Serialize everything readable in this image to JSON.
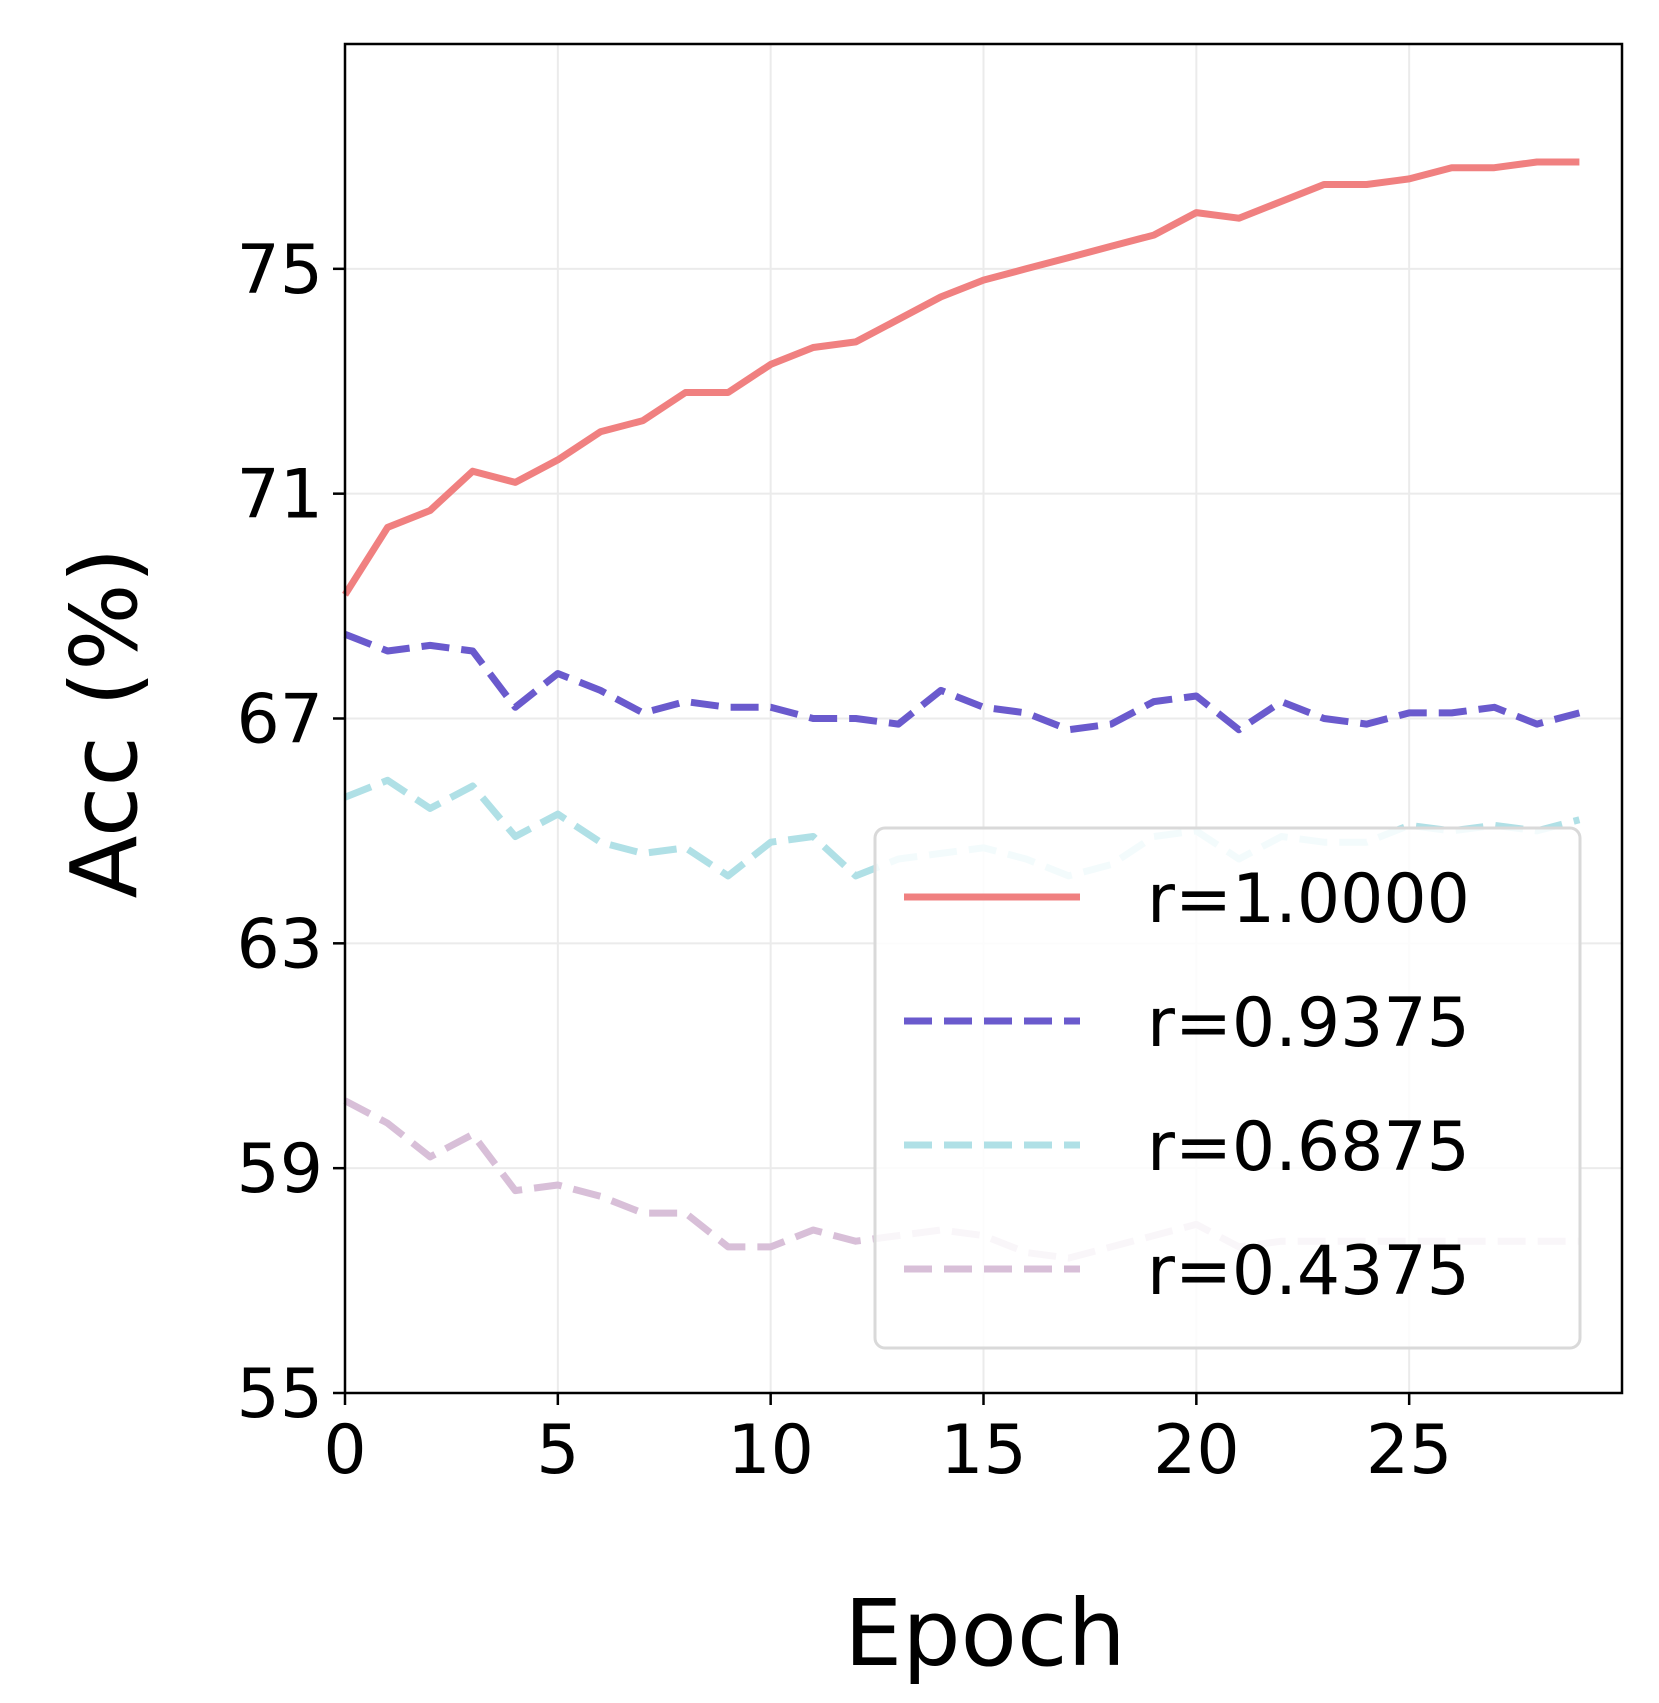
{
  "chart_data": {
    "type": "line",
    "title": "",
    "xlabel": "Epoch",
    "ylabel": "Acc (%)",
    "xlim": [
      0,
      30
    ],
    "ylim": [
      55,
      79
    ],
    "xticks": [
      0,
      5,
      10,
      15,
      20,
      25
    ],
    "yticks": [
      55,
      59,
      63,
      67,
      71,
      75
    ],
    "grid": true,
    "legend_position": "lower-right",
    "x": [
      0,
      1,
      2,
      3,
      4,
      5,
      6,
      7,
      8,
      9,
      10,
      11,
      12,
      13,
      14,
      15,
      16,
      17,
      18,
      19,
      20,
      21,
      22,
      23,
      24,
      25,
      26,
      27,
      28,
      29
    ],
    "series": [
      {
        "name": "r=1.0000",
        "color": "#f08080",
        "style": "solid",
        "values": [
          69.2,
          70.4,
          70.7,
          71.4,
          71.2,
          71.6,
          72.1,
          72.3,
          72.8,
          72.8,
          73.3,
          73.6,
          73.7,
          74.1,
          74.5,
          74.8,
          75.0,
          75.2,
          75.4,
          75.6,
          76.0,
          75.9,
          76.2,
          76.5,
          76.5,
          76.6,
          76.8,
          76.8,
          76.9,
          76.9
        ]
      },
      {
        "name": "r=0.9375",
        "color": "#6a5acd",
        "style": "dashed",
        "values": [
          68.5,
          68.2,
          68.3,
          68.2,
          67.2,
          67.8,
          67.5,
          67.1,
          67.3,
          67.2,
          67.2,
          67.0,
          67.0,
          66.9,
          67.5,
          67.2,
          67.1,
          66.8,
          66.9,
          67.3,
          67.4,
          66.8,
          67.3,
          67.0,
          66.9,
          67.1,
          67.1,
          67.2,
          66.9,
          67.1
        ]
      },
      {
        "name": "r=0.6875",
        "color": "#b0e0e6",
        "style": "dashed",
        "values": [
          65.6,
          65.9,
          65.4,
          65.8,
          64.9,
          65.3,
          64.8,
          64.6,
          64.7,
          64.2,
          64.8,
          64.9,
          64.2,
          64.5,
          64.6,
          64.7,
          64.5,
          64.2,
          64.4,
          64.9,
          65.0,
          64.5,
          64.9,
          64.8,
          64.8,
          65.1,
          65.0,
          65.1,
          65.0,
          65.2
        ]
      },
      {
        "name": "r=0.4375",
        "color": "#d8bfd8",
        "style": "dashed",
        "values": [
          60.2,
          59.8,
          59.2,
          59.6,
          58.6,
          58.7,
          58.5,
          58.2,
          58.2,
          57.6,
          57.6,
          57.9,
          57.7,
          57.8,
          57.9,
          57.8,
          57.5,
          57.4,
          57.6,
          57.8,
          58.0,
          57.6,
          57.7,
          57.7,
          57.7,
          57.7,
          57.7,
          57.7,
          57.7,
          57.7
        ]
      }
    ]
  }
}
